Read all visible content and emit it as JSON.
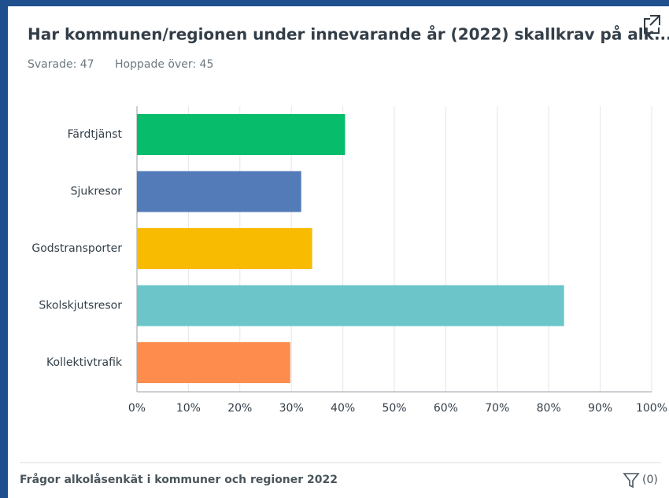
{
  "chart_data": {
    "type": "hbar",
    "title": "Har kommunen/regionen under innevarande år (2022) skallkrav på alk...",
    "answered": "Svarade: 47",
    "skipped": "Hoppade över: 45",
    "categories": [
      "Färdtjänst",
      "Sjukresor",
      "Godstransporter",
      "Skolskjutsresor",
      "Kollektivtrafik"
    ],
    "values": [
      40.43,
      31.91,
      34.04,
      82.98,
      29.79
    ],
    "colors": [
      "#07bc6a",
      "#527bb8",
      "#f8bb02",
      "#6cc6c9",
      "#fe8c4c"
    ],
    "xlim": [
      0,
      100
    ],
    "xticks": [
      {
        "value": 0,
        "label": "0%"
      },
      {
        "value": 10,
        "label": "10%"
      },
      {
        "value": 20,
        "label": "20%"
      },
      {
        "value": 30,
        "label": "30%"
      },
      {
        "value": 40,
        "label": "40%"
      },
      {
        "value": 50,
        "label": "50%"
      },
      {
        "value": 60,
        "label": "60%"
      },
      {
        "value": 70,
        "label": "70%"
      },
      {
        "value": 80,
        "label": "80%"
      },
      {
        "value": 90,
        "label": "90%"
      },
      {
        "value": 100,
        "label": "100%"
      }
    ],
    "grid": true,
    "footer": "Frågor alkolåsenkät i kommuner och regioner 2022",
    "filter": "(0)"
  }
}
